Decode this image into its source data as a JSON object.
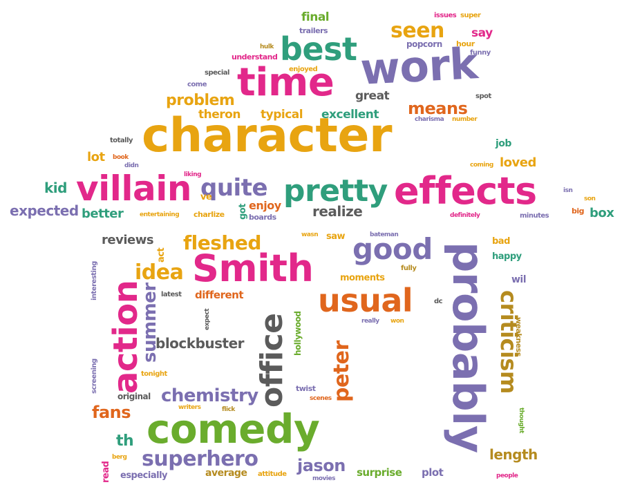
{
  "palette": {
    "pink": "#e2288a",
    "gold": "#e8a411",
    "purple": "#7b6fb0",
    "green": "#2f9e7c",
    "lime": "#6aac2d",
    "orange": "#e0661d",
    "gray": "#5b5b5b",
    "lavender": "#8e86c1",
    "olive": "#b58b1f"
  },
  "words": [
    {
      "text": "character",
      "color": "gold"
    },
    {
      "text": "time",
      "color": "pink"
    },
    {
      "text": "work",
      "color": "purple"
    },
    {
      "text": "best",
      "color": "green"
    },
    {
      "text": "villain",
      "color": "pink"
    },
    {
      "text": "effects",
      "color": "pink"
    },
    {
      "text": "pretty",
      "color": "green"
    },
    {
      "text": "quite",
      "color": "purple"
    },
    {
      "text": "Smith",
      "color": "pink"
    },
    {
      "text": "probably",
      "color": "purple"
    },
    {
      "text": "comedy",
      "color": "lime"
    },
    {
      "text": "action",
      "color": "pink"
    },
    {
      "text": "usual",
      "color": "orange"
    },
    {
      "text": "good",
      "color": "purple"
    },
    {
      "text": "office",
      "color": "gray"
    },
    {
      "text": "criticism",
      "color": "olive"
    },
    {
      "text": "superhero",
      "color": "purple"
    },
    {
      "text": "chemistry",
      "color": "purple"
    },
    {
      "text": "seen",
      "color": "gold"
    },
    {
      "text": "fleshed",
      "color": "gold"
    },
    {
      "text": "means",
      "color": "orange"
    },
    {
      "text": "problem",
      "color": "gold"
    },
    {
      "text": "idea",
      "color": "gold"
    },
    {
      "text": "blockbuster",
      "color": "gray"
    },
    {
      "text": "peter",
      "color": "orange"
    },
    {
      "text": "summer",
      "color": "purple"
    },
    {
      "text": "fans",
      "color": "orange"
    },
    {
      "text": "th",
      "color": "green"
    },
    {
      "text": "jason",
      "color": "purple"
    },
    {
      "text": "length",
      "color": "olive"
    },
    {
      "text": "expected",
      "color": "purple"
    },
    {
      "text": "kid",
      "color": "green"
    },
    {
      "text": "better",
      "color": "green"
    },
    {
      "text": "enjoy",
      "color": "orange"
    },
    {
      "text": "realize",
      "color": "gray"
    },
    {
      "text": "reviews",
      "color": "gray"
    },
    {
      "text": "lot",
      "color": "gold"
    },
    {
      "text": "loved",
      "color": "gold"
    },
    {
      "text": "job",
      "color": "green"
    },
    {
      "text": "box",
      "color": "green"
    },
    {
      "text": "excellent",
      "color": "green"
    },
    {
      "text": "typical",
      "color": "gold"
    },
    {
      "text": "theron",
      "color": "gold"
    },
    {
      "text": "great",
      "color": "gray"
    },
    {
      "text": "final",
      "color": "lime"
    },
    {
      "text": "trailers",
      "color": "purple"
    },
    {
      "text": "say",
      "color": "pink"
    },
    {
      "text": "popcorn",
      "color": "purple"
    },
    {
      "text": "issues",
      "color": "pink"
    },
    {
      "text": "super",
      "color": "gold"
    },
    {
      "text": "hour",
      "color": "gold"
    },
    {
      "text": "funny",
      "color": "purple"
    },
    {
      "text": "hulk",
      "color": "olive"
    },
    {
      "text": "understand",
      "color": "pink"
    },
    {
      "text": "enjoyed",
      "color": "gold"
    },
    {
      "text": "special",
      "color": "gray"
    },
    {
      "text": "come",
      "color": "purple"
    },
    {
      "text": "spot",
      "color": "gray"
    },
    {
      "text": "charisma",
      "color": "purple"
    },
    {
      "text": "number",
      "color": "gold"
    },
    {
      "text": "totally",
      "color": "gray"
    },
    {
      "text": "book",
      "color": "orange"
    },
    {
      "text": "didn",
      "color": "purple"
    },
    {
      "text": "liking",
      "color": "pink"
    },
    {
      "text": "ve",
      "color": "gold"
    },
    {
      "text": "got",
      "color": "green"
    },
    {
      "text": "entertaining",
      "color": "gold"
    },
    {
      "text": "charlize",
      "color": "gold"
    },
    {
      "text": "boards",
      "color": "purple"
    },
    {
      "text": "coming",
      "color": "gold"
    },
    {
      "text": "isn",
      "color": "purple"
    },
    {
      "text": "son",
      "color": "gold"
    },
    {
      "text": "big",
      "color": "orange"
    },
    {
      "text": "minutes",
      "color": "purple"
    },
    {
      "text": "definitely",
      "color": "pink"
    },
    {
      "text": "wasn",
      "color": "gold"
    },
    {
      "text": "saw",
      "color": "gold"
    },
    {
      "text": "bateman",
      "color": "purple"
    },
    {
      "text": "bad",
      "color": "gold"
    },
    {
      "text": "happy",
      "color": "green"
    },
    {
      "text": "wil",
      "color": "purple"
    },
    {
      "text": "fully",
      "color": "olive"
    },
    {
      "text": "moments",
      "color": "gold"
    },
    {
      "text": "act",
      "color": "gold"
    },
    {
      "text": "different",
      "color": "orange"
    },
    {
      "text": "latest",
      "color": "gray"
    },
    {
      "text": "interesting",
      "color": "purple"
    },
    {
      "text": "screening",
      "color": "purple"
    },
    {
      "text": "expect",
      "color": "gray"
    },
    {
      "text": "hollywood",
      "color": "lime"
    },
    {
      "text": "really",
      "color": "purple"
    },
    {
      "text": "won",
      "color": "gold"
    },
    {
      "text": "dc",
      "color": "gray"
    },
    {
      "text": "weakness",
      "color": "olive"
    },
    {
      "text": "thought",
      "color": "lime"
    },
    {
      "text": "tonight",
      "color": "gold"
    },
    {
      "text": "original",
      "color": "gray"
    },
    {
      "text": "twist",
      "color": "purple"
    },
    {
      "text": "scenes",
      "color": "orange"
    },
    {
      "text": "writers",
      "color": "gold"
    },
    {
      "text": "flick",
      "color": "olive"
    },
    {
      "text": "read",
      "color": "pink"
    },
    {
      "text": "berg",
      "color": "gold"
    },
    {
      "text": "especially",
      "color": "purple"
    },
    {
      "text": "average",
      "color": "olive"
    },
    {
      "text": "attitude",
      "color": "gold"
    },
    {
      "text": "movies",
      "color": "purple"
    },
    {
      "text": "surprise",
      "color": "lime"
    },
    {
      "text": "plot",
      "color": "purple"
    },
    {
      "text": "people",
      "color": "pink"
    }
  ]
}
